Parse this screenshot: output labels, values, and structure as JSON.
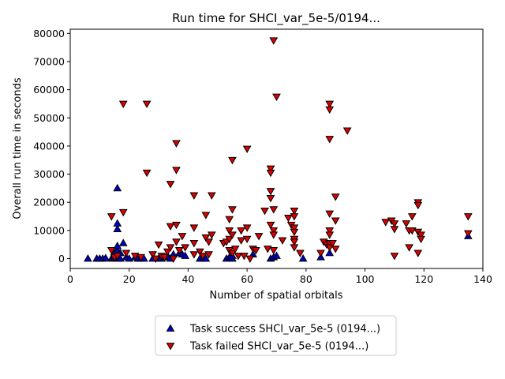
{
  "chart_data": {
    "type": "scatter",
    "title": "Run time for SHCI_var_5e-5/0194...",
    "xlabel": "Number of spatial orbitals",
    "ylabel": "Overall run time in seconds",
    "xlim": [
      0,
      140
    ],
    "ylim": [
      -3500,
      81500
    ],
    "xticks": [
      0,
      20,
      40,
      60,
      80,
      100,
      120,
      140
    ],
    "yticks": [
      0,
      10000,
      20000,
      30000,
      40000,
      50000,
      60000,
      70000,
      80000
    ],
    "grid": false,
    "legend_position": "bottom",
    "series": [
      {
        "name": "Task success SHCI_var_5e-5 (0194...)",
        "marker": "triangle-up",
        "color": "#0000cc",
        "points": [
          [
            6,
            0
          ],
          [
            9,
            0
          ],
          [
            10,
            0
          ],
          [
            11,
            0
          ],
          [
            12,
            200
          ],
          [
            14,
            0
          ],
          [
            15,
            300
          ],
          [
            15,
            1000
          ],
          [
            15,
            2000
          ],
          [
            16,
            0
          ],
          [
            16,
            500
          ],
          [
            16,
            1500
          ],
          [
            16,
            3000
          ],
          [
            16,
            4500
          ],
          [
            16,
            10500
          ],
          [
            16,
            12500
          ],
          [
            16,
            25000
          ],
          [
            17,
            0
          ],
          [
            17,
            2000
          ],
          [
            18,
            5500
          ],
          [
            19,
            500
          ],
          [
            20,
            0
          ],
          [
            22,
            500
          ],
          [
            23,
            0
          ],
          [
            24,
            0
          ],
          [
            25,
            0
          ],
          [
            28,
            0
          ],
          [
            30,
            0
          ],
          [
            31,
            0
          ],
          [
            32,
            500
          ],
          [
            33,
            1000
          ],
          [
            34,
            0
          ],
          [
            35,
            1500
          ],
          [
            37,
            2000
          ],
          [
            38,
            1500
          ],
          [
            39,
            1000
          ],
          [
            44,
            0
          ],
          [
            45,
            0
          ],
          [
            46,
            0
          ],
          [
            53,
            0
          ],
          [
            54,
            500
          ],
          [
            55,
            0
          ],
          [
            55,
            1000
          ],
          [
            62,
            1500
          ],
          [
            68,
            0
          ],
          [
            69,
            500
          ],
          [
            70,
            1000
          ],
          [
            79,
            0
          ],
          [
            85,
            500
          ],
          [
            88,
            2000
          ],
          [
            135,
            8000
          ]
        ]
      },
      {
        "name": "Task failed SHCI_var_5e-5 (0194...)",
        "marker": "triangle-down",
        "color": "#dd0000",
        "points": [
          [
            14,
            15000
          ],
          [
            14,
            3000
          ],
          [
            15,
            500
          ],
          [
            16,
            1000
          ],
          [
            18,
            16500
          ],
          [
            18,
            55000
          ],
          [
            19,
            2000
          ],
          [
            22,
            1000
          ],
          [
            24,
            500
          ],
          [
            26,
            30500
          ],
          [
            26,
            55000
          ],
          [
            28,
            1500
          ],
          [
            29,
            0
          ],
          [
            30,
            5000
          ],
          [
            31,
            1000
          ],
          [
            32,
            500
          ],
          [
            33,
            2500
          ],
          [
            34,
            26500
          ],
          [
            34,
            11500
          ],
          [
            34,
            4000
          ],
          [
            35,
            0
          ],
          [
            36,
            41000
          ],
          [
            36,
            31500
          ],
          [
            36,
            12000
          ],
          [
            36,
            6000
          ],
          [
            37,
            3000
          ],
          [
            38,
            8000
          ],
          [
            39,
            4000
          ],
          [
            42,
            22500
          ],
          [
            42,
            11000
          ],
          [
            42,
            5500
          ],
          [
            42,
            1500
          ],
          [
            44,
            2500
          ],
          [
            45,
            1000
          ],
          [
            46,
            15500
          ],
          [
            46,
            7500
          ],
          [
            47,
            6000
          ],
          [
            47,
            1500
          ],
          [
            48,
            22500
          ],
          [
            48,
            8500
          ],
          [
            52,
            5500
          ],
          [
            53,
            6000
          ],
          [
            54,
            14000
          ],
          [
            54,
            10000
          ],
          [
            54,
            7000
          ],
          [
            54,
            3000
          ],
          [
            55,
            17500
          ],
          [
            55,
            35000
          ],
          [
            55,
            8500
          ],
          [
            55,
            2000
          ],
          [
            56,
            3500
          ],
          [
            57,
            1000
          ],
          [
            58,
            10000
          ],
          [
            58,
            6500
          ],
          [
            59,
            1000
          ],
          [
            60,
            39000
          ],
          [
            60,
            11000
          ],
          [
            60,
            7000
          ],
          [
            61,
            0
          ],
          [
            62,
            3500
          ],
          [
            63,
            3000
          ],
          [
            64,
            8000
          ],
          [
            66,
            17000
          ],
          [
            67,
            3500
          ],
          [
            68,
            32000
          ],
          [
            68,
            30500
          ],
          [
            68,
            24000
          ],
          [
            68,
            21500
          ],
          [
            68,
            12000
          ],
          [
            69,
            77500
          ],
          [
            69,
            17500
          ],
          [
            69,
            10000
          ],
          [
            69,
            8500
          ],
          [
            69,
            3000
          ],
          [
            70,
            57500
          ],
          [
            72,
            6500
          ],
          [
            74,
            14500
          ],
          [
            75,
            12000
          ],
          [
            76,
            17000
          ],
          [
            76,
            15000
          ],
          [
            76,
            11000
          ],
          [
            76,
            9500
          ],
          [
            76,
            7000
          ],
          [
            76,
            6000
          ],
          [
            76,
            4000
          ],
          [
            78,
            2000
          ],
          [
            85,
            2000
          ],
          [
            86,
            6000
          ],
          [
            87,
            5000
          ],
          [
            88,
            55000
          ],
          [
            88,
            53000
          ],
          [
            88,
            42500
          ],
          [
            88,
            16000
          ],
          [
            88,
            10000
          ],
          [
            88,
            8500
          ],
          [
            88,
            5500
          ],
          [
            88,
            4000
          ],
          [
            89,
            5500
          ],
          [
            90,
            22000
          ],
          [
            90,
            13500
          ],
          [
            90,
            3500
          ],
          [
            94,
            45500
          ],
          [
            107,
            13000
          ],
          [
            109,
            13500
          ],
          [
            110,
            12500
          ],
          [
            110,
            10500
          ],
          [
            110,
            1000
          ],
          [
            114,
            12500
          ],
          [
            115,
            10000
          ],
          [
            115,
            4000
          ],
          [
            116,
            15000
          ],
          [
            116,
            10000
          ],
          [
            118,
            20000
          ],
          [
            118,
            19000
          ],
          [
            118,
            9500
          ],
          [
            118,
            2000
          ],
          [
            119,
            8500
          ],
          [
            119,
            7000
          ],
          [
            135,
            15000
          ],
          [
            135,
            9000
          ]
        ]
      }
    ]
  }
}
